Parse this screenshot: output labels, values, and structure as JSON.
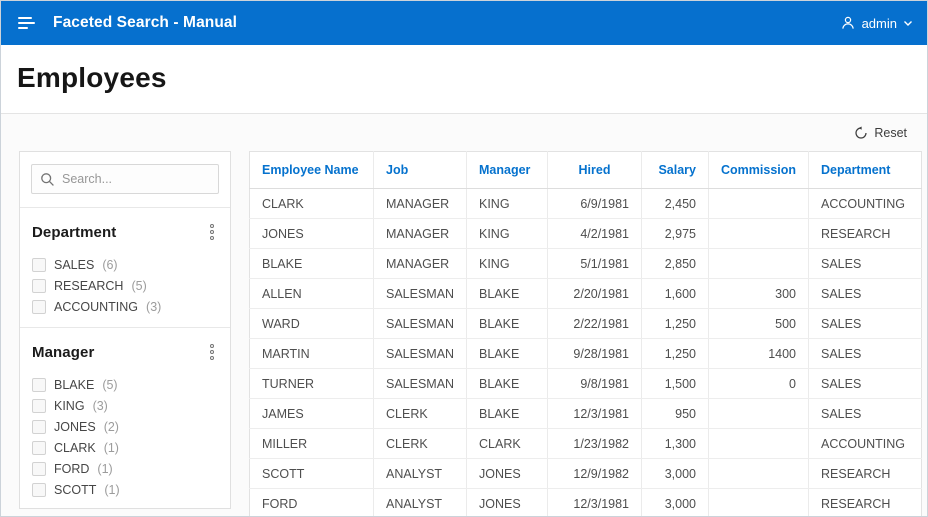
{
  "app_header": {
    "title": "Faceted Search - Manual",
    "user": "admin"
  },
  "page": {
    "title": "Employees"
  },
  "toolbar": {
    "reset_label": "Reset"
  },
  "facets": {
    "search_placeholder": "Search...",
    "sections": [
      {
        "title": "Department",
        "items": [
          {
            "label": "SALES",
            "count": "(6)"
          },
          {
            "label": "RESEARCH",
            "count": "(5)"
          },
          {
            "label": "ACCOUNTING",
            "count": "(3)"
          }
        ]
      },
      {
        "title": "Manager",
        "items": [
          {
            "label": "BLAKE",
            "count": "(5)"
          },
          {
            "label": "KING",
            "count": "(3)"
          },
          {
            "label": "JONES",
            "count": "(2)"
          },
          {
            "label": "CLARK",
            "count": "(1)"
          },
          {
            "label": "FORD",
            "count": "(1)"
          },
          {
            "label": "SCOTT",
            "count": "(1)"
          }
        ]
      }
    ]
  },
  "table": {
    "columns": [
      "Employee Name",
      "Job",
      "Manager",
      "Hired",
      "Salary",
      "Commission",
      "Department"
    ],
    "rows": [
      [
        "CLARK",
        "MANAGER",
        "KING",
        "6/9/1981",
        "2,450",
        "",
        "ACCOUNTING"
      ],
      [
        "JONES",
        "MANAGER",
        "KING",
        "4/2/1981",
        "2,975",
        "",
        "RESEARCH"
      ],
      [
        "BLAKE",
        "MANAGER",
        "KING",
        "5/1/1981",
        "2,850",
        "",
        "SALES"
      ],
      [
        "ALLEN",
        "SALESMAN",
        "BLAKE",
        "2/20/1981",
        "1,600",
        "300",
        "SALES"
      ],
      [
        "WARD",
        "SALESMAN",
        "BLAKE",
        "2/22/1981",
        "1,250",
        "500",
        "SALES"
      ],
      [
        "MARTIN",
        "SALESMAN",
        "BLAKE",
        "9/28/1981",
        "1,250",
        "1400",
        "SALES"
      ],
      [
        "TURNER",
        "SALESMAN",
        "BLAKE",
        "9/8/1981",
        "1,500",
        "0",
        "SALES"
      ],
      [
        "JAMES",
        "CLERK",
        "BLAKE",
        "12/3/1981",
        "950",
        "",
        "SALES"
      ],
      [
        "MILLER",
        "CLERK",
        "CLARK",
        "1/23/1982",
        "1,300",
        "",
        "ACCOUNTING"
      ],
      [
        "SCOTT",
        "ANALYST",
        "JONES",
        "12/9/1982",
        "3,000",
        "",
        "RESEARCH"
      ],
      [
        "FORD",
        "ANALYST",
        "JONES",
        "12/3/1981",
        "3,000",
        "",
        "RESEARCH"
      ]
    ]
  },
  "colors": {
    "header_bg": "#0670ce",
    "link_blue": "#0572ce"
  }
}
